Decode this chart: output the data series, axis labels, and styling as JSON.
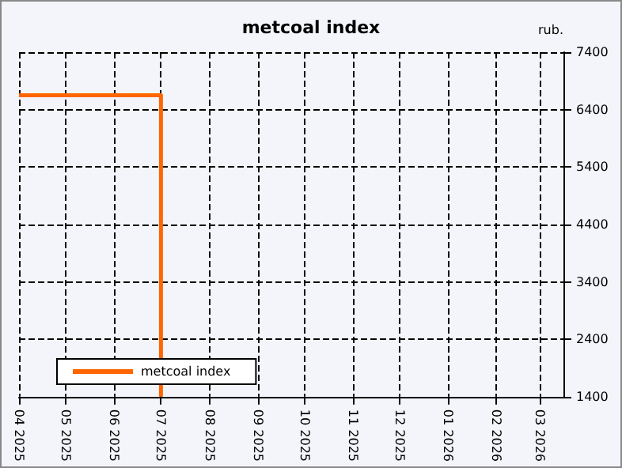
{
  "chart_data": {
    "type": "step",
    "title": "metcoal index",
    "ylabel": "rub.",
    "x": [
      "2025-04",
      "2025-07"
    ],
    "series": [
      {
        "name": "metcoal index",
        "color": "#ff6600",
        "values": [
          6650,
          1400
        ]
      }
    ],
    "xlim": [
      "2025-04",
      "2026-03-16"
    ],
    "xticks": [
      {
        "value": "2025-04",
        "label": "04 2025"
      },
      {
        "value": "2025-05",
        "label": "05 2025"
      },
      {
        "value": "2025-06",
        "label": "06 2025"
      },
      {
        "value": "2025-07",
        "label": "07 2025"
      },
      {
        "value": "2025-08",
        "label": "08 2025"
      },
      {
        "value": "2025-09",
        "label": "09 2025"
      },
      {
        "value": "2025-10",
        "label": "10 2025"
      },
      {
        "value": "2025-11",
        "label": "11 2025"
      },
      {
        "value": "2025-12",
        "label": "12 2025"
      },
      {
        "value": "2026-01",
        "label": "01 2026"
      },
      {
        "value": "2026-02",
        "label": "02 2026"
      },
      {
        "value": "2026-03",
        "label": "03 2026"
      }
    ],
    "ylim": [
      1400,
      7400
    ],
    "yticks": [
      1400,
      2400,
      3400,
      4400,
      5400,
      6400,
      7400
    ],
    "grid": true,
    "legend": "bottom left",
    "marker": "none",
    "line_style": "solid"
  }
}
